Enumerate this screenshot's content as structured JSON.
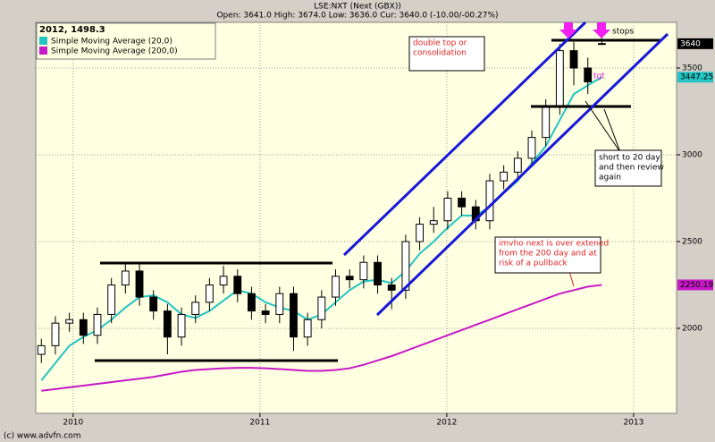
{
  "chart_data": {
    "type": "candlestick",
    "title": "LSE:NXT (Next (GBX))",
    "subtitle": "Open: 3641.0 High: 3674.0 Low: 3636.0 Cur: 3640.0 (-10.00/-00.27%)",
    "legend_title": "2012, 1498.3",
    "footer": "(c) www.advfn.com",
    "x": [
      2009.83,
      2009.905,
      2009.98,
      2010.055,
      2010.13,
      2010.205,
      2010.28,
      2010.355,
      2010.43,
      2010.505,
      2010.58,
      2010.655,
      2010.73,
      2010.805,
      2010.88,
      2010.955,
      2011.03,
      2011.105,
      2011.18,
      2011.255,
      2011.33,
      2011.405,
      2011.48,
      2011.555,
      2011.63,
      2011.705,
      2011.78,
      2011.855,
      2011.93,
      2012.005,
      2012.08,
      2012.155,
      2012.23,
      2012.305,
      2012.38,
      2012.455,
      2012.53,
      2012.605,
      2012.68,
      2012.755,
      2012.83
    ],
    "open": [
      1850,
      1900,
      2030,
      2050,
      1960,
      2080,
      2250,
      2330,
      2180,
      2100,
      1950,
      2080,
      2150,
      2250,
      2300,
      2200,
      2100,
      2080,
      2200,
      1950,
      2050,
      2180,
      2300,
      2280,
      2380,
      2250,
      2220,
      2500,
      2600,
      2620,
      2750,
      2700,
      2620,
      2850,
      2900,
      2980,
      3100,
      3280,
      3600,
      3500,
      3641
    ],
    "high": [
      1940,
      2070,
      2090,
      2090,
      2120,
      2290,
      2370,
      2370,
      2220,
      2140,
      2120,
      2190,
      2290,
      2360,
      2340,
      2240,
      2140,
      2240,
      2240,
      2090,
      2220,
      2340,
      2340,
      2420,
      2420,
      2290,
      2540,
      2640,
      2700,
      2790,
      2790,
      2740,
      2890,
      2940,
      3020,
      3140,
      3320,
      3640,
      3650,
      3560,
      3674
    ],
    "low": [
      1800,
      1850,
      1980,
      1910,
      1910,
      2030,
      2200,
      2130,
      2050,
      1850,
      1900,
      2030,
      2100,
      2200,
      2150,
      2050,
      2030,
      2030,
      1870,
      1900,
      2000,
      2130,
      2230,
      2230,
      2200,
      2110,
      2170,
      2450,
      2550,
      2570,
      2650,
      2570,
      2570,
      2800,
      2850,
      2930,
      3050,
      3230,
      3400,
      3350,
      3636
    ],
    "close": [
      1900,
      2030,
      2050,
      1960,
      2080,
      2250,
      2330,
      2180,
      2100,
      1950,
      2080,
      2150,
      2250,
      2300,
      2200,
      2100,
      2080,
      2200,
      1950,
      2050,
      2180,
      2300,
      2280,
      2380,
      2250,
      2220,
      2500,
      2600,
      2620,
      2750,
      2700,
      2620,
      2850,
      2900,
      2980,
      3100,
      3280,
      3600,
      3500,
      3420,
      3640
    ],
    "last_label": "3640",
    "series": [
      {
        "name": "Simple Moving Average (20,0)",
        "color": "#22c4c4",
        "last_label": "3447.25",
        "values": [
          1700,
          1800,
          1900,
          1950,
          1990,
          2050,
          2120,
          2180,
          2190,
          2150,
          2080,
          2060,
          2100,
          2160,
          2220,
          2200,
          2150,
          2120,
          2100,
          2050,
          2080,
          2150,
          2220,
          2270,
          2280,
          2260,
          2330,
          2430,
          2500,
          2580,
          2650,
          2650,
          2700,
          2780,
          2850,
          2950,
          3050,
          3200,
          3350,
          3400,
          3447.25
        ]
      },
      {
        "name": "Simple Moving Average (200,0)",
        "color": "#c818c8",
        "last_label": "2250.19",
        "values": [
          1640,
          1650,
          1660,
          1670,
          1680,
          1690,
          1700,
          1710,
          1720,
          1735,
          1750,
          1760,
          1765,
          1770,
          1772,
          1772,
          1770,
          1765,
          1760,
          1755,
          1755,
          1760,
          1770,
          1790,
          1815,
          1840,
          1870,
          1900,
          1930,
          1960,
          1990,
          2020,
          2050,
          2080,
          2110,
          2140,
          2170,
          2200,
          2220,
          2240,
          2250.19
        ]
      }
    ],
    "xlim": [
      2009.8,
      2013.23
    ],
    "xticks": [
      2010,
      2011,
      2012,
      2013
    ],
    "ylim": [
      1510,
      3763
    ],
    "yticks": [
      2000,
      2500,
      3000,
      3500
    ],
    "grid": true,
    "annotations": [
      {
        "lines": [
          "double top or",
          "consolidation"
        ]
      },
      {
        "lines": [
          "stops"
        ]
      },
      {
        "lines": [
          "tgt"
        ]
      },
      {
        "lines": [
          "short to 20 day",
          "and then review",
          "again"
        ]
      },
      {
        "lines": [
          "imvho next is over extened",
          "from the 200 day and at",
          "risk of a pullback"
        ]
      }
    ]
  }
}
